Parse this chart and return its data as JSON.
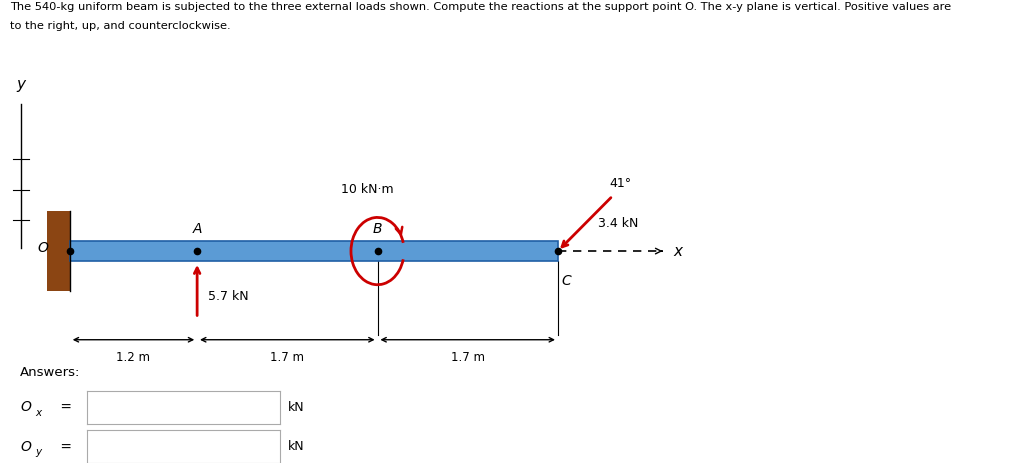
{
  "title_line1": "The 540-kg uniform beam is subjected to the three external loads shown. Compute the reactions at the support point O. The x-y plane is vertical. Positive values are",
  "title_line2": "to the right, up, and counterclockwise.",
  "beam_color": "#5b9bd5",
  "beam_edge_color": "#1f5fa6",
  "wall_color": "#8B4513",
  "arrow_color": "#cc0000",
  "text_color": "#000000",
  "force_A_label": "5.7 kN",
  "force_B_label": "10 kN·m",
  "force_C_label": "3.4 kN",
  "angle_label": "41",
  "dist_OA": "1.2 m",
  "dist_AB": "1.7 m",
  "dist_BC": "1.7 m",
  "label_O": "O",
  "label_A": "A",
  "label_B": "B",
  "label_C": "C",
  "fig_bg": "#ffffff"
}
